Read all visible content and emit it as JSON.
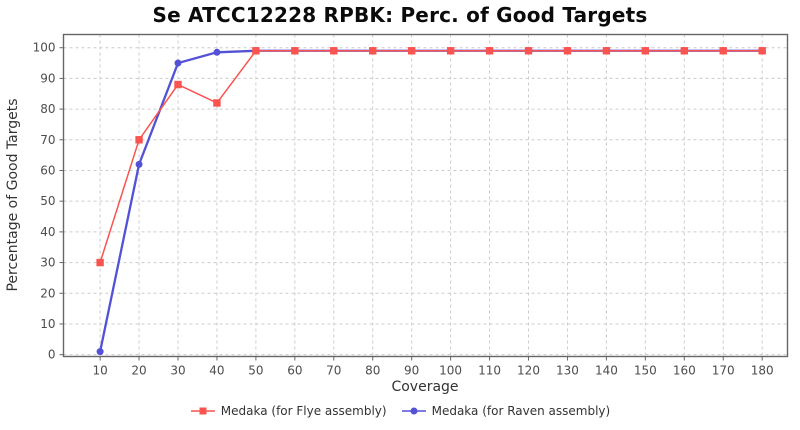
{
  "chart_data": {
    "type": "line",
    "title": "Se ATCC12228 RPBK: Perc. of Good Targets",
    "xlabel": "Coverage",
    "ylabel": "Percentage of Good Targets",
    "x": [
      10,
      20,
      30,
      40,
      50,
      60,
      70,
      80,
      90,
      100,
      110,
      120,
      130,
      140,
      150,
      160,
      170,
      180
    ],
    "series": [
      {
        "name": "Medaka (for Flye assembly)",
        "color": "#f9544f",
        "marker": "square",
        "values": [
          30,
          70,
          88,
          82,
          99,
          99,
          99,
          99,
          99,
          99,
          99,
          99,
          99,
          99,
          99,
          99,
          99,
          99
        ]
      },
      {
        "name": "Medaka (for Raven assembly)",
        "color": "#5351d5",
        "marker": "circle",
        "values": [
          1,
          62,
          95,
          98.5,
          99,
          99,
          99,
          99,
          99,
          99,
          99,
          99,
          99,
          99,
          99,
          99,
          99,
          99
        ]
      }
    ],
    "xticks": [
      10,
      20,
      30,
      40,
      50,
      60,
      70,
      80,
      90,
      100,
      110,
      120,
      130,
      140,
      150,
      160,
      170,
      180
    ],
    "yticks": [
      0,
      10,
      20,
      30,
      40,
      50,
      60,
      70,
      80,
      90,
      100
    ],
    "xlim": [
      0.6,
      186.5
    ],
    "ylim": [
      -0.6,
      104.3
    ],
    "grid": true,
    "grid_style": "dashed",
    "legend_position": "bottom",
    "style": {
      "background": "#ffffff",
      "grid_color": "#cccccc",
      "border_color": "#666666",
      "tick_label_color": "#4d4d4d",
      "axis_label_color": "#333333",
      "title_color": "#0b0b0b"
    }
  }
}
